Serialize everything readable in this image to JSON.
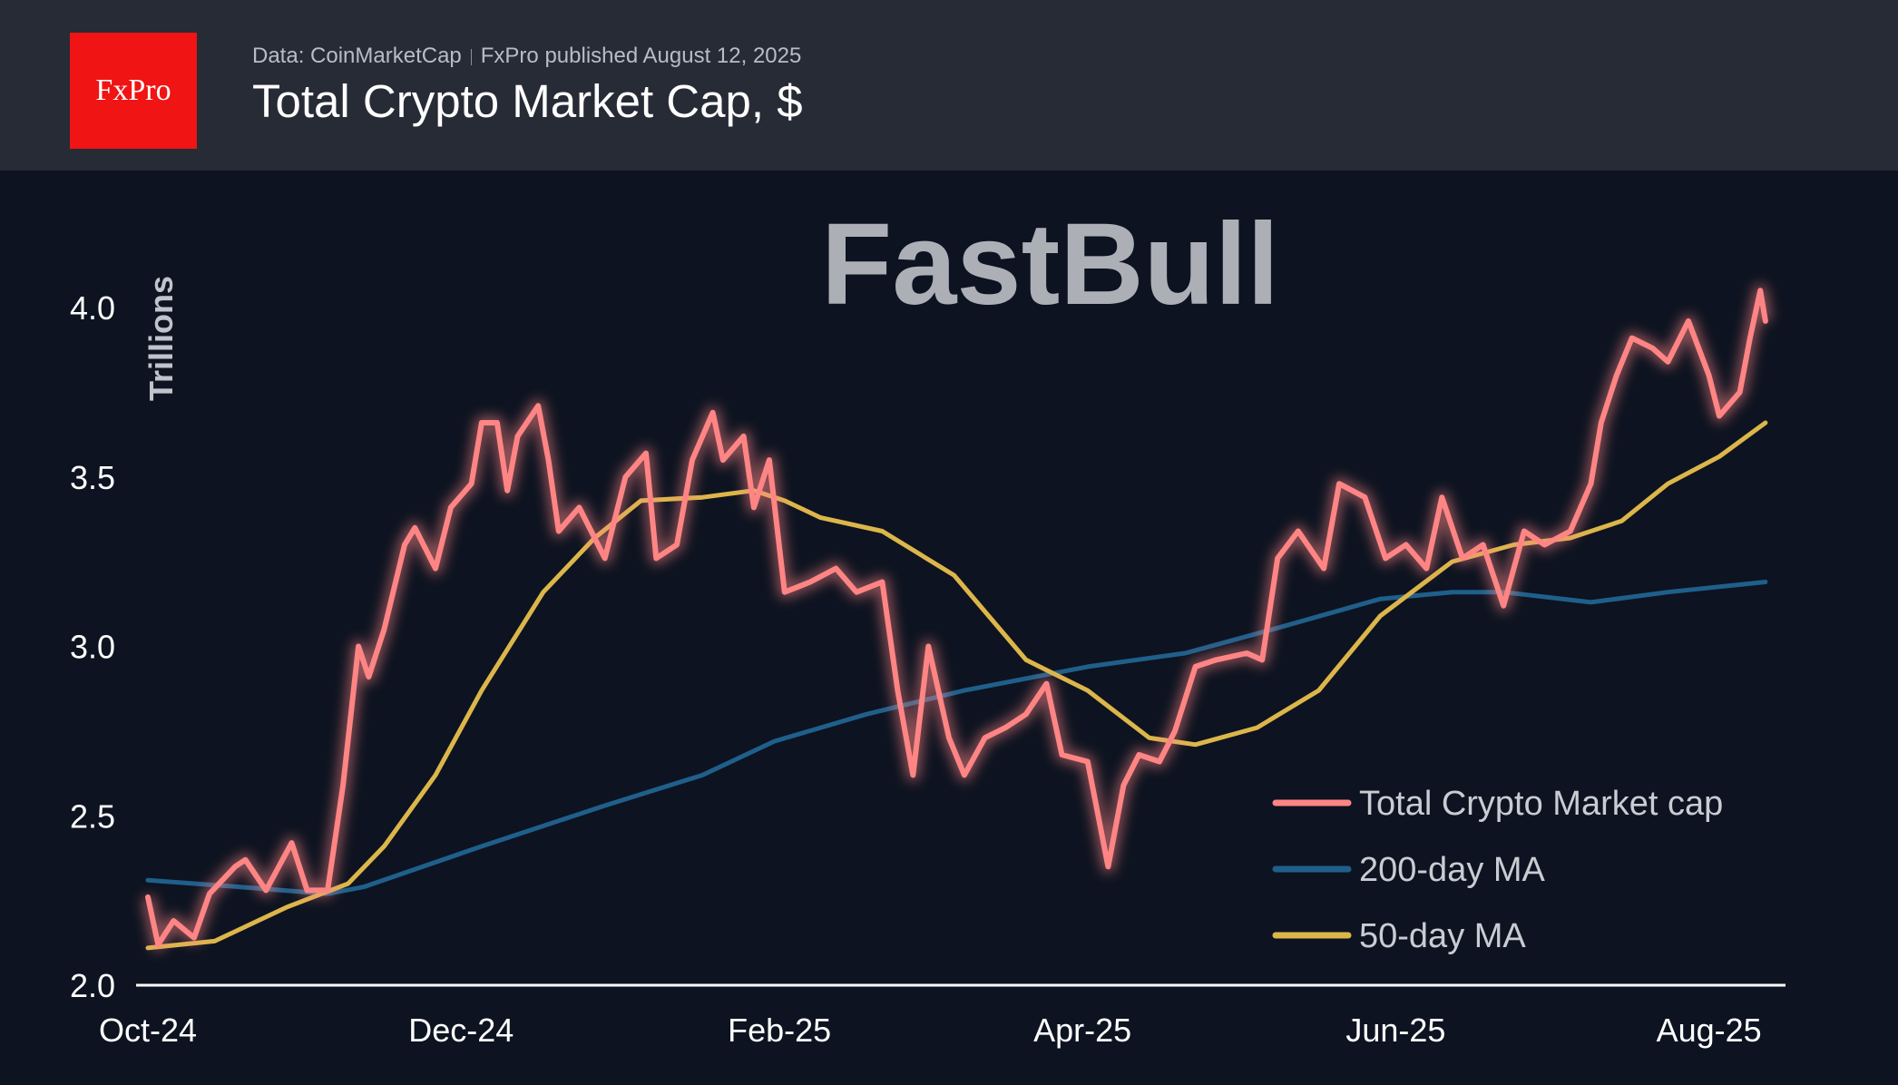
{
  "header": {
    "logo_text": "FxPro",
    "source": "Data: CoinMarketCap",
    "published": "FxPro published August 12, 2025",
    "title": "Total Crypto Market Cap, $"
  },
  "watermark": "FastBull",
  "colors": {
    "background": "#0d1320",
    "header": "#272b36",
    "market_cap": "#ff8585",
    "ma200": "#1f5f8b",
    "ma50": "#dcb64a",
    "logo": "#f01414"
  },
  "chart_data": {
    "type": "line",
    "title": "Total Crypto Market Cap, $",
    "ylabel": "Trillions",
    "xlabel": "",
    "ylim": [
      2.0,
      4.1
    ],
    "yticks": [
      "2.0",
      "2.5",
      "3.0",
      "3.5",
      "4.0"
    ],
    "xticks": [
      {
        "label": "Oct-24",
        "date": "2024-10-01"
      },
      {
        "label": "Dec-24",
        "date": "2024-12-01"
      },
      {
        "label": "Feb-25",
        "date": "2025-02-01"
      },
      {
        "label": "Apr-25",
        "date": "2025-04-01"
      },
      {
        "label": "Jun-25",
        "date": "2025-06-01"
      },
      {
        "label": "Aug-25",
        "date": "2025-08-01"
      }
    ],
    "grid": false,
    "legend_position": "bottom-right",
    "series": [
      {
        "name": "Total Crypto Market cap",
        "color": "#ff8585",
        "points": [
          [
            "2024-10-01",
            2.26
          ],
          [
            "2024-10-03",
            2.12
          ],
          [
            "2024-10-06",
            2.19
          ],
          [
            "2024-10-10",
            2.14
          ],
          [
            "2024-10-13",
            2.27
          ],
          [
            "2024-10-18",
            2.35
          ],
          [
            "2024-10-20",
            2.37
          ],
          [
            "2024-10-24",
            2.28
          ],
          [
            "2024-10-29",
            2.42
          ],
          [
            "2024-11-01",
            2.28
          ],
          [
            "2024-11-05",
            2.28
          ],
          [
            "2024-11-08",
            2.59
          ],
          [
            "2024-11-11",
            3.0
          ],
          [
            "2024-11-13",
            2.91
          ],
          [
            "2024-11-16",
            3.05
          ],
          [
            "2024-11-20",
            3.3
          ],
          [
            "2024-11-22",
            3.35
          ],
          [
            "2024-11-26",
            3.23
          ],
          [
            "2024-11-29",
            3.41
          ],
          [
            "2024-12-03",
            3.48
          ],
          [
            "2024-12-05",
            3.66
          ],
          [
            "2024-12-08",
            3.66
          ],
          [
            "2024-12-10",
            3.46
          ],
          [
            "2024-12-12",
            3.62
          ],
          [
            "2024-12-16",
            3.71
          ],
          [
            "2024-12-18",
            3.55
          ],
          [
            "2024-12-20",
            3.34
          ],
          [
            "2024-12-24",
            3.41
          ],
          [
            "2024-12-29",
            3.26
          ],
          [
            "2025-01-02",
            3.5
          ],
          [
            "2025-01-06",
            3.57
          ],
          [
            "2025-01-08",
            3.26
          ],
          [
            "2025-01-12",
            3.3
          ],
          [
            "2025-01-15",
            3.55
          ],
          [
            "2025-01-19",
            3.69
          ],
          [
            "2025-01-21",
            3.55
          ],
          [
            "2025-01-25",
            3.62
          ],
          [
            "2025-01-27",
            3.41
          ],
          [
            "2025-01-30",
            3.55
          ],
          [
            "2025-02-02",
            3.16
          ],
          [
            "2025-02-07",
            3.19
          ],
          [
            "2025-02-12",
            3.23
          ],
          [
            "2025-02-16",
            3.16
          ],
          [
            "2025-02-21",
            3.19
          ],
          [
            "2025-02-24",
            2.87
          ],
          [
            "2025-02-27",
            2.62
          ],
          [
            "2025-03-02",
            3.0
          ],
          [
            "2025-03-06",
            2.73
          ],
          [
            "2025-03-09",
            2.62
          ],
          [
            "2025-03-13",
            2.73
          ],
          [
            "2025-03-17",
            2.76
          ],
          [
            "2025-03-21",
            2.8
          ],
          [
            "2025-03-25",
            2.89
          ],
          [
            "2025-03-28",
            2.68
          ],
          [
            "2025-04-02",
            2.66
          ],
          [
            "2025-04-06",
            2.35
          ],
          [
            "2025-04-09",
            2.59
          ],
          [
            "2025-04-12",
            2.68
          ],
          [
            "2025-04-16",
            2.66
          ],
          [
            "2025-04-19",
            2.75
          ],
          [
            "2025-04-23",
            2.94
          ],
          [
            "2025-04-27",
            2.96
          ],
          [
            "2025-05-03",
            2.98
          ],
          [
            "2025-05-06",
            2.96
          ],
          [
            "2025-05-09",
            3.26
          ],
          [
            "2025-05-13",
            3.34
          ],
          [
            "2025-05-18",
            3.23
          ],
          [
            "2025-05-21",
            3.48
          ],
          [
            "2025-05-26",
            3.44
          ],
          [
            "2025-05-30",
            3.26
          ],
          [
            "2025-06-03",
            3.3
          ],
          [
            "2025-06-07",
            3.23
          ],
          [
            "2025-06-10",
            3.44
          ],
          [
            "2025-06-14",
            3.26
          ],
          [
            "2025-06-18",
            3.3
          ],
          [
            "2025-06-22",
            3.12
          ],
          [
            "2025-06-26",
            3.34
          ],
          [
            "2025-06-30",
            3.3
          ],
          [
            "2025-07-05",
            3.34
          ],
          [
            "2025-07-09",
            3.48
          ],
          [
            "2025-07-11",
            3.66
          ],
          [
            "2025-07-14",
            3.8
          ],
          [
            "2025-07-17",
            3.91
          ],
          [
            "2025-07-21",
            3.88
          ],
          [
            "2025-07-24",
            3.84
          ],
          [
            "2025-07-28",
            3.96
          ],
          [
            "2025-08-01",
            3.8
          ],
          [
            "2025-08-03",
            3.68
          ],
          [
            "2025-08-07",
            3.75
          ],
          [
            "2025-08-09",
            3.91
          ],
          [
            "2025-08-11",
            4.05
          ],
          [
            "2025-08-12",
            3.96
          ]
        ]
      },
      {
        "name": "200-day MA",
        "color": "#1f5f8b",
        "points": [
          [
            "2024-10-01",
            2.31
          ],
          [
            "2024-10-19",
            2.29
          ],
          [
            "2024-11-05",
            2.27
          ],
          [
            "2024-11-12",
            2.29
          ],
          [
            "2024-12-05",
            2.41
          ],
          [
            "2024-12-29",
            2.53
          ],
          [
            "2025-01-17",
            2.62
          ],
          [
            "2025-01-31",
            2.72
          ],
          [
            "2025-02-18",
            2.8
          ],
          [
            "2025-03-09",
            2.87
          ],
          [
            "2025-04-02",
            2.94
          ],
          [
            "2025-04-21",
            2.98
          ],
          [
            "2025-05-08",
            3.05
          ],
          [
            "2025-05-29",
            3.14
          ],
          [
            "2025-06-12",
            3.16
          ],
          [
            "2025-06-22",
            3.16
          ],
          [
            "2025-07-09",
            3.13
          ],
          [
            "2025-07-24",
            3.16
          ],
          [
            "2025-08-12",
            3.19
          ]
        ]
      },
      {
        "name": "50-day MA",
        "color": "#dcb64a",
        "points": [
          [
            "2024-10-01",
            2.11
          ],
          [
            "2024-10-14",
            2.13
          ],
          [
            "2024-10-28",
            2.23
          ],
          [
            "2024-11-09",
            2.3
          ],
          [
            "2024-11-16",
            2.41
          ],
          [
            "2024-11-26",
            2.62
          ],
          [
            "2024-12-05",
            2.87
          ],
          [
            "2024-12-17",
            3.16
          ],
          [
            "2024-12-27",
            3.32
          ],
          [
            "2025-01-05",
            3.43
          ],
          [
            "2025-01-17",
            3.44
          ],
          [
            "2025-01-27",
            3.46
          ],
          [
            "2025-02-02",
            3.43
          ],
          [
            "2025-02-09",
            3.38
          ],
          [
            "2025-02-21",
            3.34
          ],
          [
            "2025-03-07",
            3.21
          ],
          [
            "2025-03-21",
            2.96
          ],
          [
            "2025-04-02",
            2.87
          ],
          [
            "2025-04-14",
            2.73
          ],
          [
            "2025-04-23",
            2.71
          ],
          [
            "2025-05-05",
            2.76
          ],
          [
            "2025-05-17",
            2.87
          ],
          [
            "2025-05-29",
            3.09
          ],
          [
            "2025-06-12",
            3.25
          ],
          [
            "2025-06-24",
            3.3
          ],
          [
            "2025-07-05",
            3.32
          ],
          [
            "2025-07-15",
            3.37
          ],
          [
            "2025-07-24",
            3.48
          ],
          [
            "2025-08-03",
            3.56
          ],
          [
            "2025-08-12",
            3.66
          ]
        ]
      }
    ]
  }
}
